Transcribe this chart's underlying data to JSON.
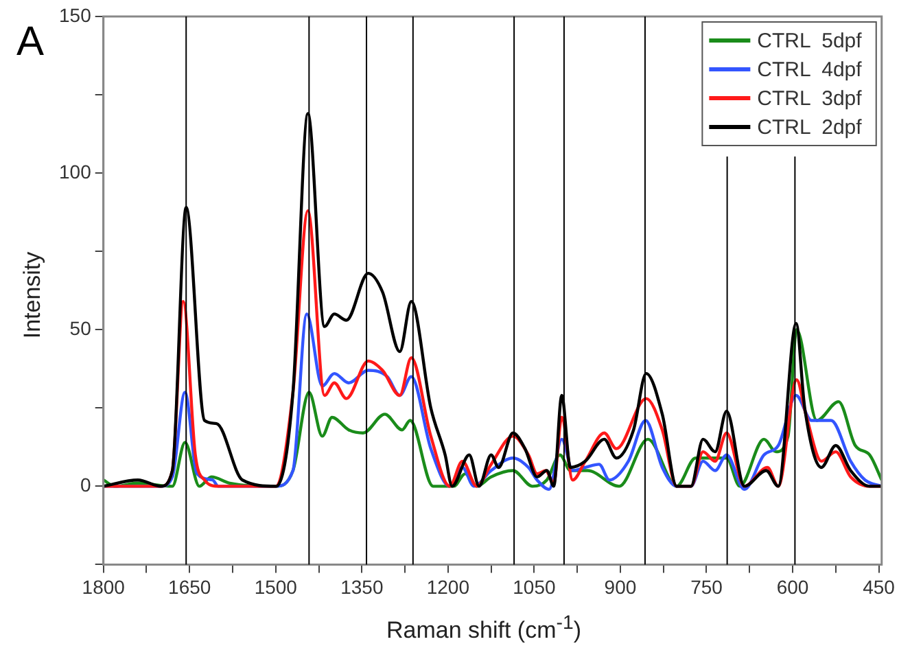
{
  "chart_data": {
    "type": "line",
    "xlabel": "Raman shift (cm$^{-1}$)",
    "ylabel": "Intensity",
    "annotations": [
      "A"
    ],
    "xlim": [
      1800,
      445
    ],
    "ylim": [
      -25,
      150
    ],
    "xticks": [
      1800,
      {
        "value": 1725,
        "label": null
      },
      1650,
      {
        "value": 1575,
        "label": null
      },
      1500,
      {
        "value": 1425,
        "label": null
      },
      1350,
      {
        "value": 1275,
        "label": null
      },
      1200,
      {
        "value": 1125,
        "label": null
      },
      1050,
      {
        "value": 975,
        "label": null
      },
      900,
      {
        "value": 825,
        "label": null
      },
      750,
      {
        "value": 675,
        "label": null
      },
      600,
      {
        "value": 525,
        "label": null
      },
      450
    ],
    "yticks": [
      {
        "value": -25,
        "label": null
      },
      0,
      {
        "value": 25,
        "label": null
      },
      50,
      {
        "value": 75,
        "label": null
      },
      100,
      {
        "value": 125,
        "label": null
      },
      150
    ],
    "grid": false,
    "legend": "top right",
    "marker": "none",
    "line_style": "solid",
    "ref_lines": [
      {
        "axis": "x",
        "value": 1656,
        "color": "#000000"
      },
      {
        "axis": "x",
        "value": 1442,
        "color": "#000000"
      },
      {
        "axis": "x",
        "value": 1342,
        "color": "#000000"
      },
      {
        "axis": "x",
        "value": 1261,
        "color": "#000000"
      },
      {
        "axis": "x",
        "value": 1085,
        "color": "#000000"
      },
      {
        "axis": "x",
        "value": 998,
        "color": "#000000"
      },
      {
        "axis": "x",
        "value": 857,
        "color": "#000000"
      },
      {
        "axis": "x",
        "value": 714,
        "color": "#000000"
      },
      {
        "axis": "x",
        "value": 596,
        "color": "#000000"
      }
    ],
    "series": [
      {
        "name": "CTRL  5dpf",
        "color": "#1a8c1a",
        "x": [
          1800,
          1780,
          1740,
          1680,
          1658,
          1633,
          1612,
          1580,
          1500,
          1470,
          1442,
          1419,
          1402,
          1373,
          1348,
          1310,
          1280,
          1266,
          1226,
          1190,
          1170,
          1150,
          1125,
          1087,
          1053,
          1028,
          1005,
          987,
          957,
          902,
          852,
          802,
          769,
          715,
          692,
          650,
          629,
          608,
          593,
          558,
          520,
          491,
          466,
          445
        ],
        "values": [
          2,
          0,
          1,
          0,
          14,
          0,
          3,
          1,
          0,
          5,
          30,
          16,
          22,
          18,
          17,
          23,
          18,
          21,
          0,
          0,
          4,
          0,
          3,
          5,
          0,
          2,
          10,
          5,
          5,
          0,
          15,
          0,
          9,
          9,
          0,
          15,
          11,
          16,
          50,
          21,
          27,
          13,
          10,
          2
        ]
      },
      {
        "name": "CTRL  4dpf",
        "color": "#3355ff",
        "x": [
          1800,
          1700,
          1680,
          1658,
          1637,
          1610,
          1600,
          1500,
          1470,
          1446,
          1419,
          1398,
          1373,
          1339,
          1306,
          1284,
          1264,
          1230,
          1197,
          1175,
          1155,
          1125,
          1087,
          1060,
          1045,
          1024,
          1002,
          983,
          961,
          937,
          919,
          886,
          856,
          827,
          802,
          777,
          756,
          735,
          715,
          684,
          650,
          625,
          594,
          567,
          533,
          499,
          474,
          445
        ],
        "values": [
          0,
          0,
          3,
          30,
          4,
          2,
          0,
          0,
          5,
          55,
          32,
          36,
          33,
          37,
          35,
          29,
          35,
          12,
          0,
          6,
          0,
          5,
          9,
          6,
          2,
          -1,
          15,
          5,
          6,
          7,
          2,
          8,
          21,
          6,
          0,
          0,
          8,
          5,
          10,
          -1,
          10,
          13,
          29,
          21,
          21,
          8,
          2,
          0
        ]
      },
      {
        "name": "CTRL  3dpf",
        "color": "#ff1a1a",
        "x": [
          1800,
          1700,
          1680,
          1661,
          1640,
          1624,
          1600,
          1500,
          1470,
          1444,
          1415,
          1398,
          1377,
          1339,
          1314,
          1284,
          1264,
          1230,
          1197,
          1175,
          1150,
          1125,
          1087,
          1060,
          1045,
          1030,
          1016,
          1002,
          983,
          961,
          928,
          907,
          855,
          827,
          802,
          777,
          756,
          735,
          715,
          684,
          644,
          625,
          593,
          577,
          550,
          525,
          499,
          466,
          445
        ],
        "values": [
          0,
          0,
          5,
          59,
          10,
          2,
          0,
          0,
          30,
          88,
          29,
          33,
          28,
          40,
          37,
          29,
          41,
          16,
          0,
          8,
          0,
          7,
          16,
          10,
          4,
          5,
          1,
          22,
          2,
          8,
          17,
          12,
          28,
          18,
          0,
          0,
          11,
          8,
          17,
          0,
          6,
          0,
          34,
          23,
          8,
          11,
          3,
          0,
          0
        ]
      },
      {
        "name": "CTRL  2dpf",
        "color": "#000000",
        "x": [
          1800,
          1740,
          1700,
          1680,
          1656,
          1624,
          1603,
          1558,
          1499,
          1470,
          1444,
          1415,
          1398,
          1377,
          1339,
          1314,
          1284,
          1264,
          1230,
          1205,
          1193,
          1163,
          1146,
          1125,
          1112,
          1087,
          1066,
          1045,
          1028,
          1016,
          1002,
          987,
          961,
          928,
          907,
          877,
          855,
          827,
          802,
          777,
          756,
          735,
          715,
          684,
          646,
          625,
          594,
          579,
          550,
          525,
          499,
          466,
          445
        ],
        "values": [
          0,
          2,
          0,
          5,
          89,
          21,
          20,
          2,
          0,
          30,
          119,
          51,
          55,
          53,
          68,
          62,
          43,
          59,
          25,
          10,
          0,
          10,
          0,
          10,
          6,
          17,
          12,
          3,
          5,
          0,
          29,
          6,
          8,
          15,
          9,
          18,
          36,
          23,
          0,
          0,
          15,
          11,
          24,
          0,
          5,
          0,
          52,
          25,
          6,
          13,
          5,
          0,
          0
        ]
      }
    ]
  }
}
